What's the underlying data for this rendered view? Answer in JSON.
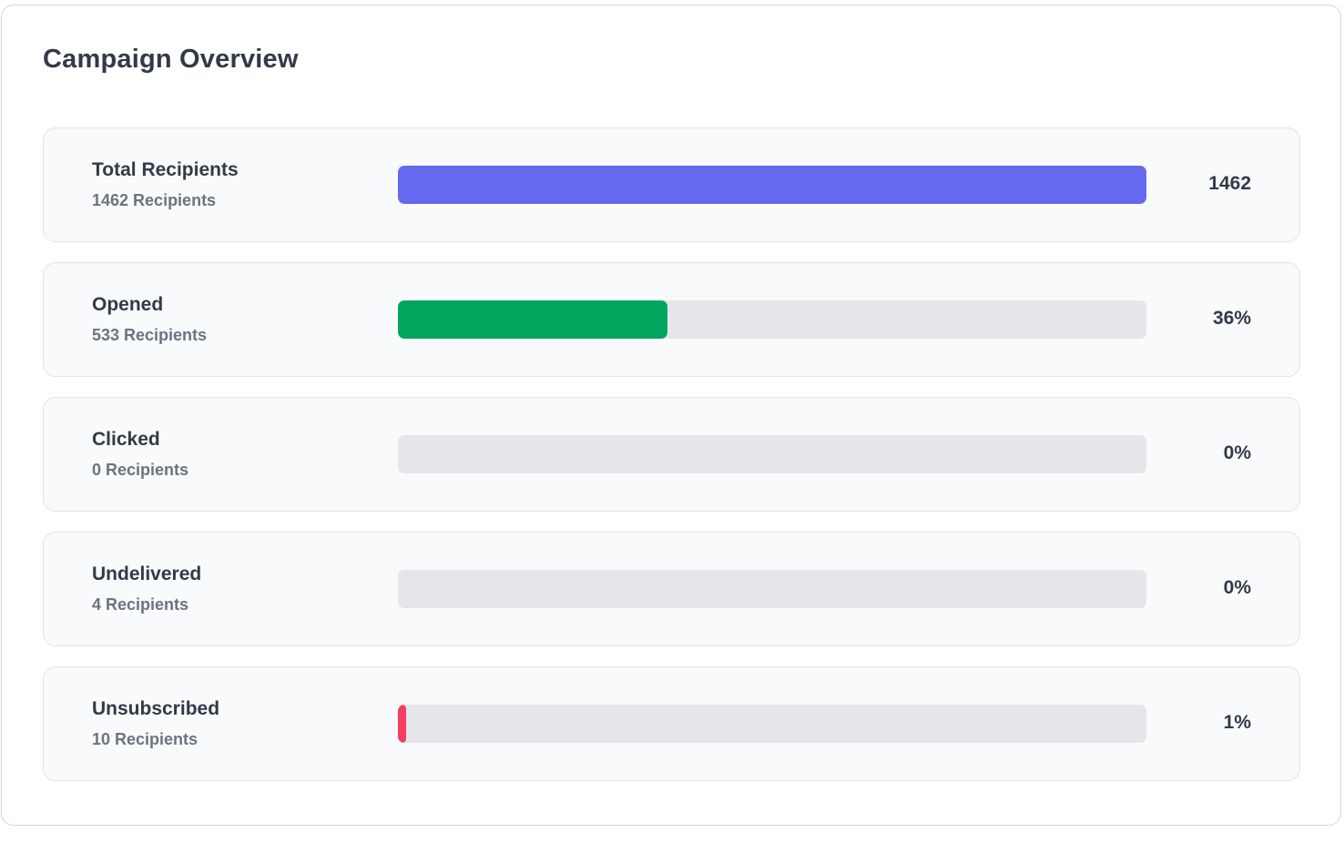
{
  "card": {
    "title": "Campaign Overview"
  },
  "rows": [
    {
      "label": "Total Recipients",
      "sub": "1462 Recipients",
      "value": "1462",
      "progress": 1.0,
      "color": "#6469ef"
    },
    {
      "label": "Opened",
      "sub": "533 Recipients",
      "value": "36%",
      "progress": 0.36,
      "color": "#00a55e"
    },
    {
      "label": "Clicked",
      "sub": "0 Recipients",
      "value": "0%",
      "progress": 0,
      "color": "#6469ef"
    },
    {
      "label": "Undelivered",
      "sub": "4 Recipients",
      "value": "0%",
      "progress": 0,
      "color": "#6469ef"
    },
    {
      "label": "Unsubscribed",
      "sub": "10 Recipients",
      "value": "1%",
      "progress": 0.01,
      "color": "#f43f5e"
    }
  ],
  "colors": {
    "track": "#e4e6ea",
    "title": "#323a48",
    "subtext": "#6c7381"
  }
}
